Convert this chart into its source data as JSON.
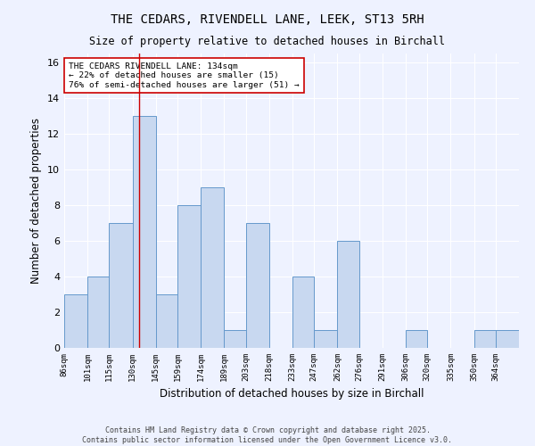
{
  "title1": "THE CEDARS, RIVENDELL LANE, LEEK, ST13 5RH",
  "title2": "Size of property relative to detached houses in Birchall",
  "xlabel": "Distribution of detached houses by size in Birchall",
  "ylabel": "Number of detached properties",
  "bin_edges": [
    86,
    101,
    115,
    130,
    145,
    159,
    174,
    189,
    203,
    218,
    233,
    247,
    262,
    276,
    291,
    306,
    320,
    335,
    350,
    364,
    379
  ],
  "counts": [
    3,
    4,
    7,
    13,
    3,
    8,
    9,
    1,
    7,
    0,
    4,
    1,
    6,
    0,
    0,
    1,
    0,
    0,
    1,
    1
  ],
  "bar_color": "#c8d8f0",
  "bar_edge_color": "#6699cc",
  "property_size": 134,
  "vline_color": "#cc0000",
  "annotation_text": "THE CEDARS RIVENDELL LANE: 134sqm\n← 22% of detached houses are smaller (15)\n76% of semi-detached houses are larger (51) →",
  "annotation_box_color": "#ffffff",
  "annotation_border_color": "#cc0000",
  "footer_text": "Contains HM Land Registry data © Crown copyright and database right 2025.\nContains public sector information licensed under the Open Government Licence v3.0.",
  "ylim": [
    0,
    16.5
  ],
  "yticks": [
    0,
    2,
    4,
    6,
    8,
    10,
    12,
    14,
    16
  ],
  "background_color": "#eef2ff",
  "grid_color": "#ffffff"
}
